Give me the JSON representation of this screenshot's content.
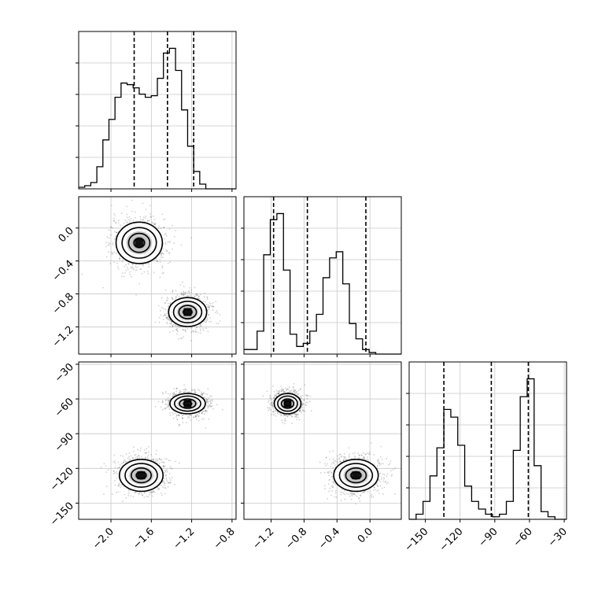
{
  "chart_data": {
    "type": "corner",
    "parameters": 3,
    "grid": true,
    "axes": {
      "p0": {
        "range": [
          -2.32,
          -0.76
        ],
        "ticks": [
          -2.0,
          -1.6,
          -1.2,
          -0.8
        ],
        "tick_labels": [
          "−2.0",
          "−1.6",
          "−1.2",
          "−0.8"
        ]
      },
      "p1": {
        "range": [
          -1.53,
          0.38
        ],
        "ticks": [
          -1.2,
          -0.8,
          -0.4,
          0.0
        ],
        "tick_labels": [
          "−1.2",
          "−0.8",
          "−0.4",
          "0.0"
        ]
      },
      "p2": {
        "range": [
          -164,
          -28
        ],
        "ticks": [
          -150,
          -120,
          -90,
          -60,
          -30
        ],
        "tick_labels": [
          "−150",
          "−120",
          "−90",
          "−60",
          "−30"
        ]
      }
    },
    "histograms": [
      {
        "param": "p0",
        "bin_edges": [
          -2.32,
          -2.26,
          -2.2,
          -2.14,
          -2.08,
          -2.02,
          -1.96,
          -1.9,
          -1.84,
          -1.78,
          -1.72,
          -1.66,
          -1.6,
          -1.54,
          -1.48,
          -1.42,
          -1.36,
          -1.3,
          -1.24,
          -1.18,
          -1.12,
          -1.06,
          -1.0,
          -0.94,
          -0.88,
          -0.82,
          -0.76
        ],
        "counts": [
          2,
          4,
          8,
          28,
          62,
          88,
          116,
          134,
          132,
          128,
          120,
          116,
          118,
          140,
          172,
          178,
          150,
          100,
          54,
          22,
          6,
          0,
          0,
          0,
          0,
          0
        ],
        "quantiles": [
          -1.77,
          -1.44,
          -1.18
        ]
      },
      {
        "param": "p1",
        "bin_edges": [
          -1.53,
          -1.45,
          -1.37,
          -1.29,
          -1.21,
          -1.13,
          -1.05,
          -0.97,
          -0.89,
          -0.81,
          -0.73,
          -0.65,
          -0.57,
          -0.49,
          -0.41,
          -0.33,
          -0.25,
          -0.17,
          -0.09,
          -0.01,
          0.07,
          0.15,
          0.23,
          0.31,
          0.38
        ],
        "counts": [
          6,
          6,
          30,
          130,
          176,
          184,
          110,
          26,
          10,
          14,
          30,
          52,
          100,
          126,
          134,
          92,
          40,
          20,
          6,
          2,
          0,
          0,
          0,
          0
        ],
        "quantiles": [
          -1.17,
          -0.76,
          -0.05
        ]
      },
      {
        "param": "p2",
        "bin_edges": [
          -164,
          -158,
          -152,
          -146,
          -140,
          -134,
          -128,
          -122,
          -116,
          -110,
          -104,
          -98,
          -92,
          -86,
          -80,
          -74,
          -68,
          -62,
          -56,
          -50,
          -44,
          -38,
          -32,
          -28
        ],
        "counts": [
          0,
          4,
          14,
          34,
          56,
          86,
          80,
          58,
          26,
          14,
          8,
          4,
          2,
          4,
          14,
          54,
          96,
          110,
          42,
          6,
          2,
          0,
          0
        ],
        "quantiles": [
          -134,
          -93,
          -61
        ]
      }
    ],
    "scatter_2d": [
      {
        "x": "p0",
        "y": "p1",
        "clusters": [
          {
            "center": [
              -1.72,
              -0.18
            ],
            "spread": [
              0.17,
              0.2
            ]
          },
          {
            "center": [
              -1.24,
              -1.02
            ],
            "spread": [
              0.14,
              0.14
            ]
          }
        ]
      },
      {
        "x": "p0",
        "y": "p2",
        "clusters": [
          {
            "center": [
              -1.7,
              -126
            ],
            "spread": [
              0.16,
              11
            ]
          },
          {
            "center": [
              -1.24,
              -64
            ],
            "spread": [
              0.13,
              7
            ]
          }
        ]
      },
      {
        "x": "p1",
        "y": "p2",
        "clusters": [
          {
            "center": [
              -1.0,
              -64
            ],
            "spread": [
              0.12,
              7
            ]
          },
          {
            "center": [
              -0.17,
              -126
            ],
            "spread": [
              0.2,
              11
            ]
          }
        ]
      }
    ]
  }
}
